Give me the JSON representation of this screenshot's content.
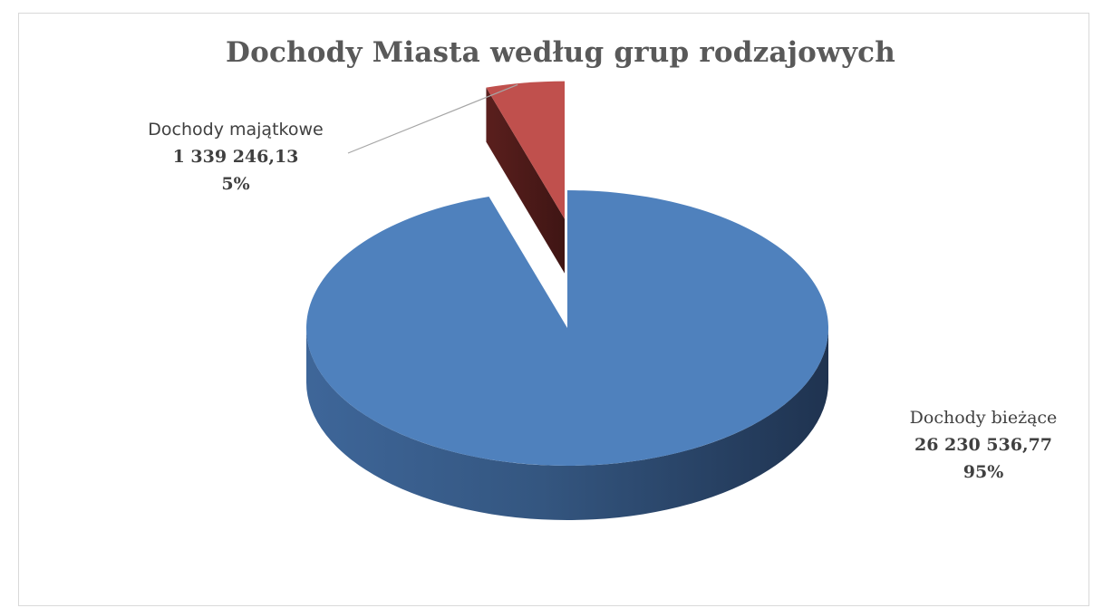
{
  "chart_data": {
    "type": "pie",
    "title": "Dochody Miasta według grup rodzajowych",
    "style": "3d-exploded",
    "slices": [
      {
        "category": "Dochody bieżące",
        "value": 26230536.77,
        "value_label": "26 230 536,77",
        "percent_label": "95%",
        "color": "#4f81bd"
      },
      {
        "category": "Dochody majątkowe",
        "value": 1339246.13,
        "value_label": "1 339 246,13",
        "percent_label": "5%",
        "color": "#c0504d"
      }
    ],
    "legend": "none"
  }
}
